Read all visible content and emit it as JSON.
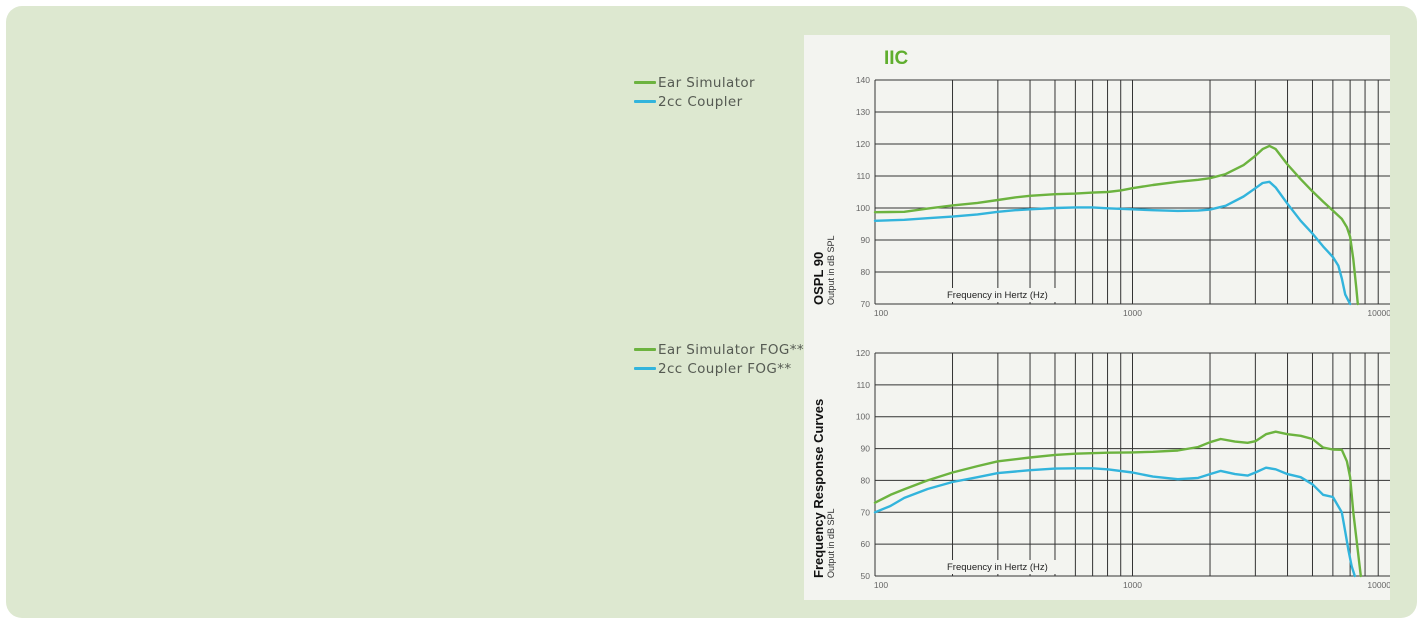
{
  "model": "IIC",
  "colors": {
    "green": "#6cb33f",
    "blue": "#32b4dc",
    "grid": "#2b2b2b",
    "minor_grid": "#bdbdbd"
  },
  "legend_top": [
    {
      "label": "Ear Simulator",
      "color": "#6cb33f"
    },
    {
      "label": "2cc Coupler",
      "color": "#32b4dc"
    }
  ],
  "legend_bottom": [
    {
      "label": "Ear Simulator FOG**",
      "color": "#6cb33f"
    },
    {
      "label": "2cc Coupler FOG**",
      "color": "#32b4dc"
    }
  ],
  "chart_data": [
    {
      "type": "line",
      "title": "OSPL 90",
      "ylabel": "Output in dB SPL",
      "xlabel": "Frequency in Hertz (Hz)",
      "xscale": "log",
      "xlim": [
        100,
        10000
      ],
      "ylim": [
        70,
        140
      ],
      "yticks": [
        70,
        80,
        90,
        100,
        110,
        120,
        130,
        140
      ],
      "xtick_labels": [
        "100",
        "1000",
        "10000"
      ],
      "series": [
        {
          "name": "Ear Simulator",
          "x": [
            100,
            130,
            160,
            200,
            250,
            300,
            350,
            400,
            500,
            600,
            700,
            800,
            900,
            1000,
            1200,
            1500,
            1800,
            2000,
            2300,
            2700,
            3000,
            3200,
            3400,
            3600,
            4000,
            4500,
            5000,
            5500,
            6000,
            6500,
            6800,
            7000,
            7200,
            7400,
            7500
          ],
          "y": [
            98.7,
            98.8,
            99.8,
            100.8,
            101.6,
            102.5,
            103.3,
            103.8,
            104.3,
            104.5,
            104.8,
            105.0,
            105.5,
            106.2,
            107.2,
            108.2,
            108.8,
            109.3,
            110.6,
            113.4,
            116.3,
            118.4,
            119.4,
            118.4,
            113.6,
            109.0,
            105.2,
            102.0,
            99.2,
            96.6,
            94.0,
            91.0,
            84.0,
            75.0,
            70.0
          ]
        },
        {
          "name": "2cc Coupler",
          "x": [
            100,
            130,
            160,
            200,
            250,
            300,
            350,
            400,
            500,
            600,
            700,
            800,
            1000,
            1200,
            1500,
            1800,
            2000,
            2300,
            2700,
            3000,
            3200,
            3400,
            3600,
            4000,
            4500,
            5000,
            5500,
            6000,
            6300,
            6500,
            6700,
            7000
          ],
          "y": [
            96.0,
            96.3,
            96.8,
            97.3,
            98.0,
            98.8,
            99.3,
            99.6,
            100.0,
            100.2,
            100.2,
            99.9,
            99.6,
            99.3,
            99.1,
            99.2,
            99.5,
            100.7,
            103.6,
            106.2,
            107.8,
            108.2,
            106.4,
            101.3,
            96.0,
            92.0,
            88.0,
            84.7,
            82.0,
            78.0,
            73.0,
            70.0
          ]
        }
      ]
    },
    {
      "type": "line",
      "title": "Frequency Response Curves",
      "ylabel": "Output in dB SPL",
      "xlabel": "Frequency in Hertz (Hz)",
      "xscale": "log",
      "xlim": [
        100,
        10000
      ],
      "ylim": [
        50,
        120
      ],
      "yticks": [
        50,
        60,
        70,
        80,
        90,
        100,
        110,
        120
      ],
      "xtick_labels": [
        "100",
        "1000",
        "10000"
      ],
      "series": [
        {
          "name": "Ear Simulator FOG**",
          "x": [
            100,
            115,
            130,
            160,
            200,
            250,
            300,
            400,
            500,
            600,
            800,
            1000,
            1200,
            1500,
            1800,
            2000,
            2200,
            2500,
            2800,
            3000,
            3300,
            3600,
            4000,
            4500,
            5000,
            5500,
            6000,
            6500,
            6800,
            7000,
            7200,
            7500,
            7700
          ],
          "y": [
            73.0,
            75.5,
            77.2,
            80.0,
            82.5,
            84.5,
            86.0,
            87.2,
            88.0,
            88.4,
            88.7,
            88.8,
            89.0,
            89.4,
            90.5,
            92.0,
            93.0,
            92.2,
            91.8,
            92.3,
            94.5,
            95.3,
            94.5,
            94.0,
            93.0,
            90.3,
            89.7,
            89.6,
            86.0,
            81.0,
            70.0,
            58.0,
            50.0
          ]
        },
        {
          "name": "2cc Coupler FOG**",
          "x": [
            100,
            115,
            130,
            160,
            200,
            250,
            300,
            400,
            500,
            600,
            700,
            800,
            1000,
            1200,
            1500,
            1800,
            2000,
            2200,
            2500,
            2800,
            3000,
            3300,
            3600,
            4000,
            4500,
            5000,
            5500,
            6000,
            6500,
            6700,
            6900,
            7100,
            7300
          ],
          "y": [
            70.0,
            72.0,
            74.5,
            77.3,
            79.5,
            81.0,
            82.3,
            83.2,
            83.7,
            83.8,
            83.8,
            83.5,
            82.5,
            81.2,
            80.4,
            80.8,
            82.0,
            83.0,
            82.0,
            81.5,
            82.5,
            84.0,
            83.5,
            82.0,
            81.0,
            78.8,
            75.5,
            74.8,
            70.0,
            64.0,
            58.0,
            53.0,
            50.0
          ]
        }
      ]
    }
  ]
}
